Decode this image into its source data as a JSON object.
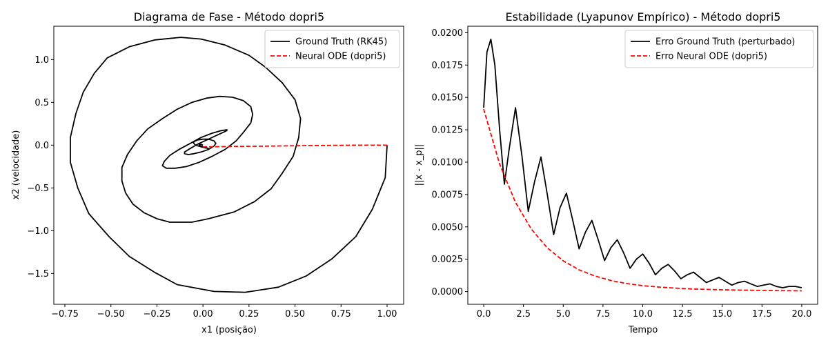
{
  "colors": {
    "ground_truth": "#000000",
    "neural_ode": "#ff0000",
    "legend_border": "#cccccc"
  },
  "chart_data": [
    {
      "type": "line",
      "title": "Diagrama de Fase - Método dopri5",
      "xlabel": "x1 (posição)",
      "ylabel": "x2 (velocidade)",
      "xlim": [
        -0.81,
        1.09
      ],
      "ylim": [
        -1.86,
        1.39
      ],
      "xticks": [
        -0.75,
        -0.5,
        -0.25,
        0.0,
        0.25,
        0.5,
        0.75,
        1.0
      ],
      "xtick_labels": [
        "−0.75",
        "−0.50",
        "−0.25",
        "0.00",
        "0.25",
        "0.50",
        "0.75",
        "1.00"
      ],
      "yticks": [
        -1.5,
        -1.0,
        -0.5,
        0.0,
        0.5,
        1.0
      ],
      "yticks_labels": [
        "−1.5",
        "−1.0",
        "−0.5",
        "0.0",
        "0.5",
        "1.0"
      ],
      "legend": "top-right",
      "grid": false,
      "series": [
        {
          "name": "Ground Truth (RK45)",
          "style": "solid",
          "x": [
            1.0,
            0.99,
            0.92,
            0.83,
            0.7,
            0.56,
            0.41,
            0.23,
            0.06,
            -0.14,
            -0.26,
            -0.4,
            -0.51,
            -0.62,
            -0.68,
            -0.72,
            -0.72,
            -0.69,
            -0.65,
            -0.59,
            -0.52,
            -0.4,
            -0.26,
            -0.12,
            -0.01,
            0.12,
            0.25,
            0.34,
            0.43,
            0.5,
            0.53,
            0.52,
            0.49,
            0.43,
            0.37,
            0.28,
            0.17,
            0.03,
            -0.06,
            -0.18,
            -0.25,
            -0.32,
            -0.38,
            -0.42,
            -0.44,
            -0.44,
            -0.41,
            -0.36,
            -0.3,
            -0.22,
            -0.14,
            -0.06,
            0.02,
            0.09,
            0.16,
            0.22,
            0.26,
            0.27,
            0.26,
            0.22,
            0.18,
            0.12,
            0.05,
            -0.02,
            -0.09,
            -0.15,
            -0.2,
            -0.22,
            -0.21,
            -0.18,
            -0.13,
            -0.07,
            -0.01,
            0.05,
            0.1,
            0.13,
            0.13,
            0.11,
            0.07,
            0.02,
            -0.03,
            -0.07,
            -0.1,
            -0.1,
            -0.08,
            -0.05,
            -0.01,
            0.03,
            0.06,
            0.07,
            0.06,
            0.03,
            0.0,
            -0.03,
            -0.05,
            -0.05,
            -0.04,
            -0.01,
            0.01,
            0.03,
            0.03,
            0.02,
            0.0,
            -0.01,
            -0.02,
            -0.02,
            -0.01,
            0.0
          ],
          "y": [
            0.0,
            -0.38,
            -0.75,
            -1.07,
            -1.33,
            -1.53,
            -1.66,
            -1.72,
            -1.71,
            -1.63,
            -1.49,
            -1.3,
            -1.07,
            -0.8,
            -0.5,
            -0.2,
            0.09,
            0.37,
            0.62,
            0.84,
            1.02,
            1.15,
            1.23,
            1.26,
            1.24,
            1.17,
            1.05,
            0.91,
            0.73,
            0.53,
            0.31,
            0.09,
            -0.13,
            -0.33,
            -0.51,
            -0.66,
            -0.78,
            -0.86,
            -0.9,
            -0.9,
            -0.86,
            -0.79,
            -0.69,
            -0.56,
            -0.42,
            -0.26,
            -0.11,
            0.05,
            0.19,
            0.31,
            0.42,
            0.5,
            0.55,
            0.57,
            0.56,
            0.52,
            0.45,
            0.36,
            0.26,
            0.15,
            0.05,
            -0.05,
            -0.13,
            -0.2,
            -0.25,
            -0.27,
            -0.27,
            -0.24,
            -0.19,
            -0.12,
            -0.05,
            0.02,
            0.09,
            0.14,
            0.17,
            0.18,
            0.17,
            0.15,
            0.11,
            0.06,
            0.01,
            -0.04,
            -0.08,
            -0.1,
            -0.11,
            -0.1,
            -0.08,
            -0.05,
            -0.01,
            0.02,
            0.05,
            0.07,
            0.07,
            0.06,
            0.04,
            0.02,
            0.0,
            -0.02,
            -0.03,
            -0.04,
            -0.04,
            -0.03,
            -0.02,
            -0.01,
            0.0,
            0.01,
            0.01,
            0.0
          ]
        },
        {
          "name": "Neural ODE (dopri5)",
          "style": "dashed",
          "x": [
            1.0,
            0.85,
            0.7,
            0.55,
            0.4,
            0.27,
            0.15,
            0.06,
            0.02,
            0.0
          ],
          "y": [
            0.0,
            0.0,
            -0.003,
            -0.006,
            -0.01,
            -0.013,
            -0.016,
            -0.019,
            -0.02,
            -0.021
          ]
        }
      ]
    },
    {
      "type": "line",
      "title": "Estabilidade (Lyapunov Empírico) - Método dopri5",
      "xlabel": "Tempo",
      "ylabel": "||x - x_p||",
      "xlim": [
        -1.0,
        21.0
      ],
      "ylim": [
        -0.00098,
        0.0205
      ],
      "xticks": [
        0.0,
        2.5,
        5.0,
        7.5,
        10.0,
        12.5,
        15.0,
        17.5,
        20.0
      ],
      "xtick_labels": [
        "0.0",
        "2.5",
        "5.0",
        "7.5",
        "10.0",
        "12.5",
        "15.0",
        "17.5",
        "20.0"
      ],
      "yticks": [
        0.0,
        0.0025,
        0.005,
        0.0075,
        0.01,
        0.0125,
        0.015,
        0.0175,
        0.02
      ],
      "yticks_labels": [
        "0.0000",
        "0.0025",
        "0.0050",
        "0.0075",
        "0.0100",
        "0.0125",
        "0.0150",
        "0.0175",
        "0.0200"
      ],
      "legend": "top-right",
      "grid": false,
      "series": [
        {
          "name": "Erro Ground Truth (perturbado)",
          "style": "solid",
          "x": [
            0.0,
            0.2,
            0.45,
            0.7,
            1.0,
            1.3,
            1.6,
            2.0,
            2.4,
            2.8,
            3.2,
            3.6,
            4.0,
            4.4,
            4.8,
            5.2,
            5.6,
            6.0,
            6.4,
            6.8,
            7.2,
            7.6,
            8.0,
            8.4,
            8.8,
            9.2,
            9.6,
            10.0,
            10.4,
            10.8,
            11.2,
            11.6,
            12.0,
            12.4,
            12.8,
            13.2,
            13.6,
            14.0,
            14.4,
            14.8,
            15.2,
            15.6,
            16.0,
            16.4,
            16.8,
            17.2,
            17.6,
            18.0,
            18.4,
            18.8,
            19.2,
            19.6,
            20.0
          ],
          "y": [
            0.0142,
            0.0185,
            0.0195,
            0.0175,
            0.0125,
            0.0083,
            0.011,
            0.0142,
            0.0105,
            0.0062,
            0.0085,
            0.0104,
            0.0075,
            0.0044,
            0.0065,
            0.0076,
            0.0055,
            0.0033,
            0.0046,
            0.0055,
            0.004,
            0.0024,
            0.0034,
            0.004,
            0.003,
            0.0018,
            0.0025,
            0.0029,
            0.0022,
            0.0013,
            0.0018,
            0.0021,
            0.0016,
            0.001,
            0.0013,
            0.0015,
            0.0011,
            0.0007,
            0.0009,
            0.0011,
            0.0008,
            0.0005,
            0.0007,
            0.0008,
            0.0006,
            0.0004,
            0.0005,
            0.0006,
            0.0004,
            0.0003,
            0.0004,
            0.0004,
            0.0003
          ]
        },
        {
          "name": "Erro Neural ODE (dopri5)",
          "style": "dashed",
          "x": [
            0,
            1,
            2,
            3,
            4,
            5,
            6,
            7,
            8,
            9,
            10,
            11,
            12,
            13,
            14,
            15,
            16,
            17,
            18,
            19,
            20
          ],
          "y": [
            0.0141,
            0.00985,
            0.00689,
            0.00482,
            0.00338,
            0.00238,
            0.00168,
            0.0012,
            0.00086,
            0.00062,
            0.00046,
            0.00035,
            0.00027,
            0.00021,
            0.00017,
            0.00014,
            0.00012,
            0.0001,
            8e-05,
            7e-05,
            6e-05
          ]
        }
      ]
    }
  ]
}
